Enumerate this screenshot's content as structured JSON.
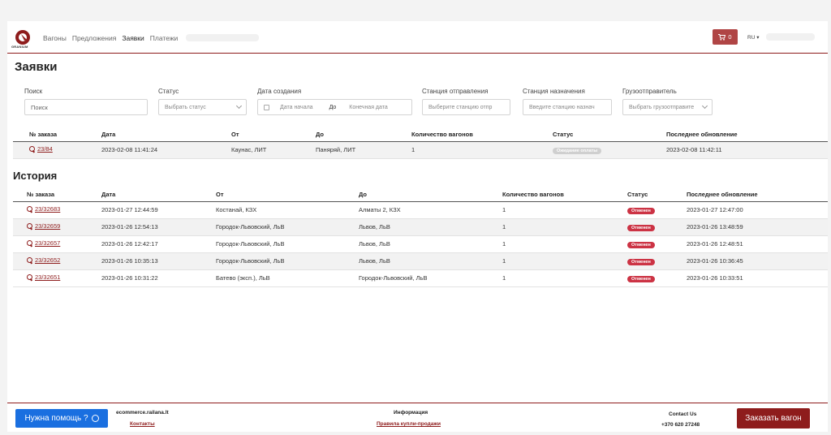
{
  "header": {
    "logo_text": "GRANIUM",
    "nav": [
      "Вагоны",
      "Предложения",
      "Заявки",
      "Платежи"
    ],
    "active_nav": "Заявки",
    "cart_count": "0",
    "lang": "RU ▾",
    "colors": {
      "brand": "#8e1c1c",
      "cart": "#b04545",
      "help": "#1a6fe0"
    }
  },
  "page_title": "Заявки",
  "filters": {
    "search_label": "Поиск",
    "search_placeholder": "Поиск",
    "status_label": "Статус",
    "status_placeholder": "Выбрать статус",
    "date_label": "Дата создания",
    "date_start": "Дата начала",
    "date_to": "До",
    "date_end": "Конечная дата",
    "from_label": "Станция отправления",
    "from_placeholder": "Выберите станцию отпр",
    "to_label": "Станция назначения",
    "to_placeholder": "Введите станцию назнач",
    "sender_label": "Грузоотправитель",
    "sender_placeholder": "Выбрать грузоотправите"
  },
  "orders": {
    "columns": [
      "№ заказа",
      "Дата",
      "От",
      "До",
      "Количество вагонов",
      "Статус",
      "Последнее обновление"
    ],
    "rows": [
      {
        "id": "23/84",
        "date": "2023-02-08 11:41:24",
        "from": "Каунас, ЛИТ",
        "to": "Паняряй, ЛИТ",
        "wagons": "1",
        "status": "Ожидание оплаты",
        "updated": "2023-02-08 11:42:11"
      }
    ]
  },
  "history_title": "История",
  "history": {
    "columns": [
      "№ заказа",
      "Дата",
      "От",
      "До",
      "Количество вагонов",
      "Статус",
      "Последнее обновление"
    ],
    "rows": [
      {
        "id": "23/32683",
        "date": "2023-01-27 12:44:59",
        "from": "Костанай, КЗХ",
        "to": "Алматы 2, КЗХ",
        "wagons": "1",
        "status": "Отменен",
        "updated": "2023-01-27 12:47:00"
      },
      {
        "id": "23/32659",
        "date": "2023-01-26 12:54:13",
        "from": "Городок-Львовский, ЛьВ",
        "to": "Львов, ЛьВ",
        "wagons": "1",
        "status": "Отменен",
        "updated": "2023-01-26 13:48:59"
      },
      {
        "id": "23/32657",
        "date": "2023-01-26 12:42:17",
        "from": "Городок-Львовский, ЛьВ",
        "to": "Львов, ЛьВ",
        "wagons": "1",
        "status": "Отменен",
        "updated": "2023-01-26 12:48:51"
      },
      {
        "id": "23/32652",
        "date": "2023-01-26 10:35:13",
        "from": "Городок-Львовский, ЛьВ",
        "to": "Львов, ЛьВ",
        "wagons": "1",
        "status": "Отменен",
        "updated": "2023-01-26 10:36:45"
      },
      {
        "id": "23/32651",
        "date": "2023-01-26 10:31:22",
        "from": "Батево (эксп.), ЛьВ",
        "to": "Городок-Львовский, ЛьВ",
        "wagons": "1",
        "status": "Отменен",
        "updated": "2023-01-26 10:33:51"
      }
    ]
  },
  "footer": {
    "help_label": "Нужна помощь ?",
    "site": "ecommerce.railana.lt",
    "contacts_link": "Контакты",
    "info_title": "Информация",
    "rules_link": "Правила купли-продажи",
    "contact_title": "Contact Us",
    "phone": "+370 620 27248",
    "order_button": "Заказать вагон"
  }
}
